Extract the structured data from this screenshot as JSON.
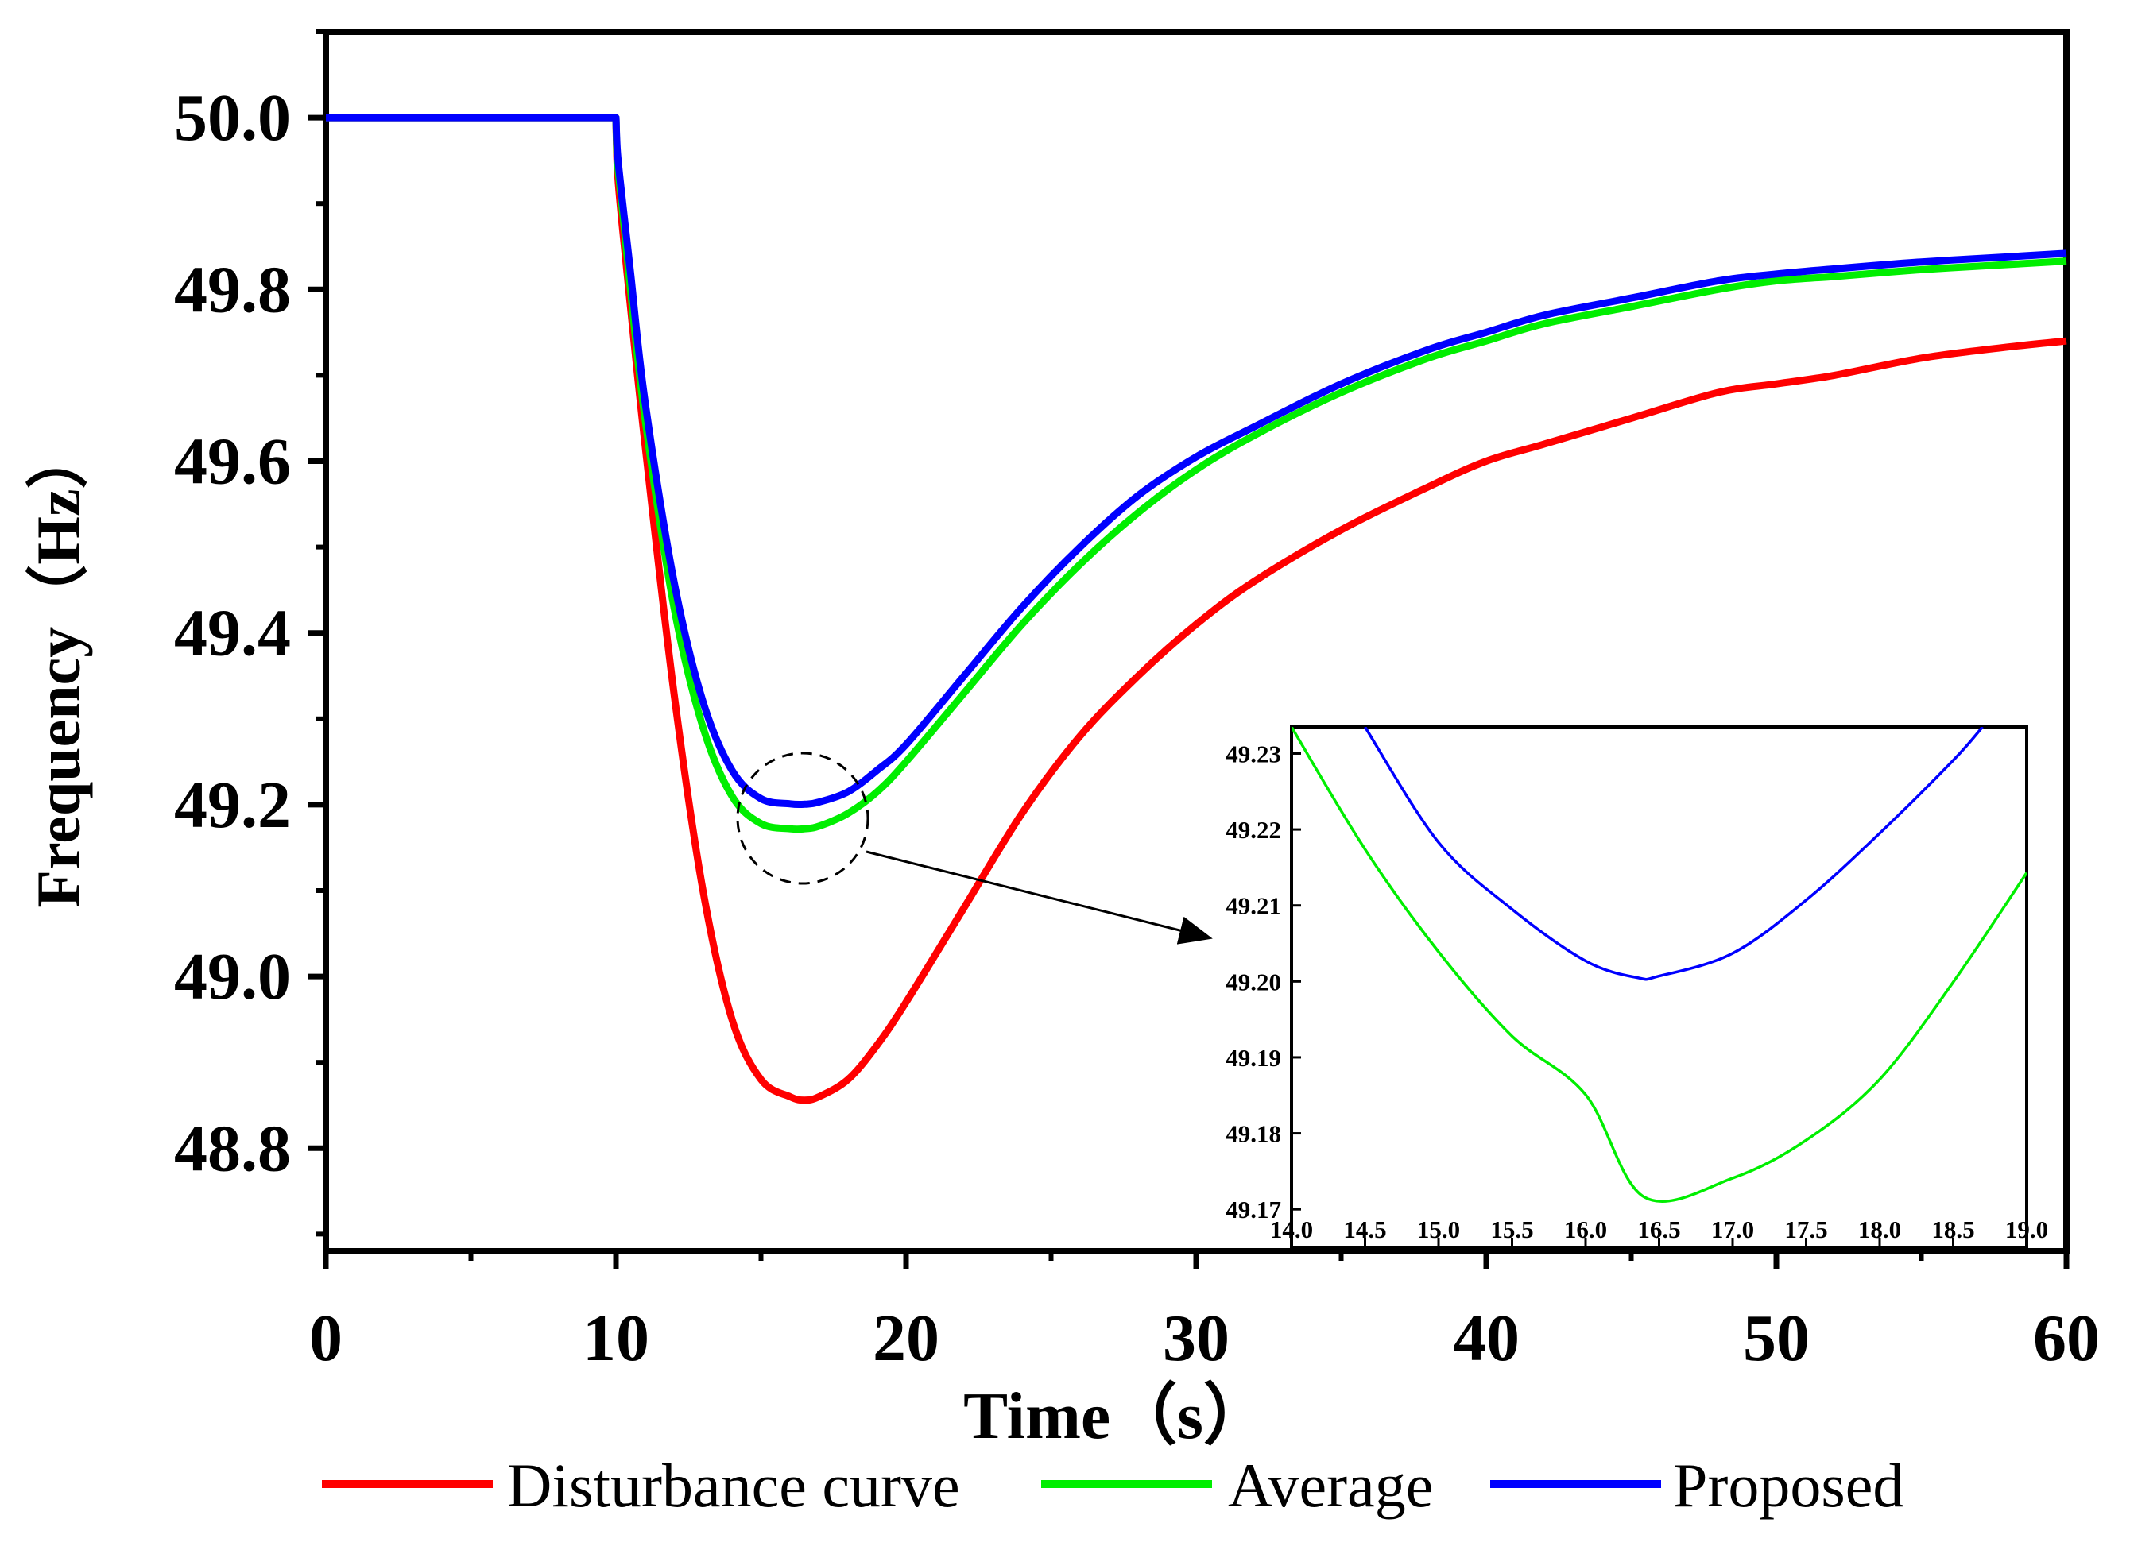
{
  "chart_data": [
    {
      "type": "line",
      "title": "",
      "xlabel": "Time（s）",
      "ylabel": "Frequency（Hz）",
      "xlim": [
        0,
        60
      ],
      "ylim": [
        48.68,
        50.1
      ],
      "xticks": [
        0,
        10,
        20,
        30,
        40,
        50,
        60
      ],
      "yticks": [
        48.8,
        49.0,
        49.2,
        49.4,
        49.6,
        49.8,
        50.0
      ],
      "xtick_labels": [
        "0",
        "10",
        "20",
        "30",
        "40",
        "50",
        "60"
      ],
      "ytick_labels": [
        "48.8",
        "49.0",
        "49.2",
        "49.4",
        "49.6",
        "49.8",
        "50.0"
      ],
      "grid": false,
      "legend_position": "bottom",
      "series": [
        {
          "name": "Disturbance curve",
          "color": "#ff0000",
          "x": [
            0,
            10,
            10.05,
            10.2,
            10.5,
            11,
            12,
            13,
            14,
            15,
            16,
            16.5,
            17,
            18,
            19,
            20,
            22,
            24,
            26,
            28,
            30,
            32,
            35,
            38,
            40,
            42,
            45,
            48,
            50,
            52,
            55,
            58,
            60
          ],
          "y": [
            50.0,
            50.0,
            49.94,
            49.88,
            49.78,
            49.62,
            49.33,
            49.1,
            48.95,
            48.88,
            48.86,
            48.856,
            48.86,
            48.88,
            48.92,
            48.97,
            49.08,
            49.19,
            49.28,
            49.35,
            49.41,
            49.46,
            49.52,
            49.57,
            49.6,
            49.62,
            49.65,
            49.68,
            49.69,
            49.7,
            49.72,
            49.733,
            49.74
          ]
        },
        {
          "name": "Average",
          "color": "#00ee00",
          "x": [
            0,
            10,
            10.05,
            10.2,
            10.5,
            11,
            12,
            13,
            14,
            15,
            16,
            16.5,
            17,
            18,
            19,
            20,
            22,
            24,
            26,
            28,
            30,
            32,
            35,
            38,
            40,
            42,
            45,
            48,
            50,
            52,
            55,
            58,
            60
          ],
          "y": [
            50.0,
            50.0,
            49.95,
            49.9,
            49.8,
            49.65,
            49.43,
            49.29,
            49.21,
            49.178,
            49.172,
            49.172,
            49.175,
            49.19,
            49.215,
            49.25,
            49.33,
            49.41,
            49.48,
            49.54,
            49.59,
            49.63,
            49.68,
            49.72,
            49.74,
            49.76,
            49.78,
            49.8,
            49.81,
            49.815,
            49.823,
            49.829,
            49.833
          ]
        },
        {
          "name": "Proposed",
          "color": "#0000ff",
          "x": [
            0,
            10,
            10.05,
            10.2,
            10.5,
            11,
            12,
            13,
            14,
            15,
            16,
            16.5,
            17,
            18,
            19,
            20,
            22,
            24,
            26,
            28,
            30,
            32,
            35,
            38,
            40,
            42,
            45,
            48,
            50,
            52,
            55,
            58,
            60
          ],
          "y": [
            50.0,
            50.0,
            49.96,
            49.91,
            49.82,
            49.67,
            49.46,
            49.32,
            49.24,
            49.207,
            49.201,
            49.2005,
            49.203,
            49.215,
            49.24,
            49.27,
            49.35,
            49.43,
            49.5,
            49.56,
            49.605,
            49.64,
            49.69,
            49.73,
            49.75,
            49.77,
            49.79,
            49.81,
            49.818,
            49.824,
            49.832,
            49.838,
            49.842
          ]
        }
      ]
    },
    {
      "type": "line",
      "title": "",
      "xlabel": "",
      "ylabel": "",
      "xlim": [
        14.0,
        19.0
      ],
      "ylim": [
        49.165,
        49.2335
      ],
      "xtick_labels": [
        "14.0",
        "14.5",
        "15.0",
        "15.5",
        "16.0",
        "16.5",
        "17.0",
        "17.5",
        "18.0",
        "18.5",
        "19.0"
      ],
      "ytick_labels": [
        "49.17",
        "49.18",
        "49.19",
        "49.20",
        "49.21",
        "49.22",
        "49.23"
      ],
      "xticks": [
        14.0,
        14.5,
        15.0,
        15.5,
        16.0,
        16.5,
        17.0,
        17.5,
        18.0,
        18.5,
        19.0
      ],
      "yticks": [
        49.17,
        49.18,
        49.19,
        49.2,
        49.21,
        49.22,
        49.23
      ],
      "grid": false,
      "series": [
        {
          "name": "Average",
          "color": "#00ee00",
          "vertex_x": 16.4,
          "vertex_y": 49.1716,
          "x": [
            14.0,
            14.5,
            15.0,
            15.5,
            16.0,
            16.4,
            17.0,
            17.5,
            18.0,
            18.5,
            19.0
          ],
          "y": [
            49.2335,
            49.2174,
            49.2039,
            49.1928,
            49.1851,
            49.1716,
            49.1741,
            49.1791,
            49.1871,
            49.1999,
            49.2143
          ]
        },
        {
          "name": "Proposed",
          "color": "#0000ff",
          "vertex_x": 16.35,
          "vertex_y": 49.2005,
          "x": [
            14.5,
            15.0,
            15.5,
            16.0,
            16.35,
            16.5,
            17.0,
            17.5,
            18.0,
            18.5,
            18.7
          ],
          "y": [
            49.2335,
            49.2183,
            49.2095,
            49.2027,
            49.2005,
            49.2007,
            49.2037,
            49.2107,
            49.2195,
            49.2291,
            49.2335
          ]
        }
      ]
    }
  ]
}
